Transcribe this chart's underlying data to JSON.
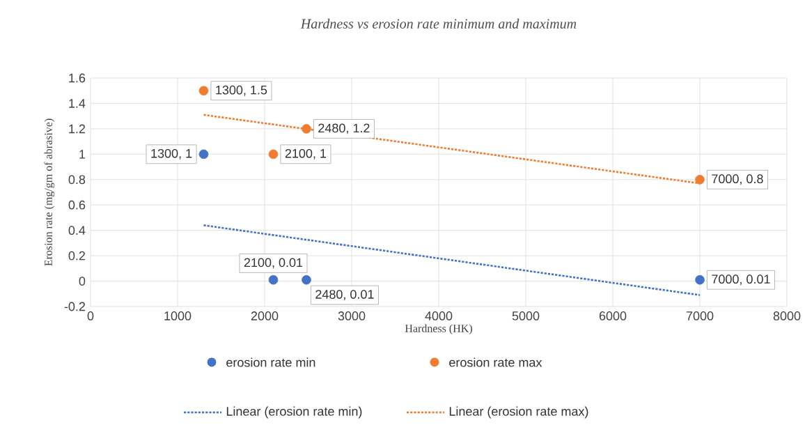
{
  "chart_data": {
    "type": "scatter",
    "title": "Hardness vs erosion rate minimum and maximum",
    "xlabel": "Hardness (HK)",
    "ylabel": "Erosion rate (mg/gm of abrasive)",
    "xlim": [
      0,
      8000
    ],
    "ylim": [
      -0.2,
      1.6
    ],
    "xticks": [
      0,
      1000,
      2000,
      3000,
      4000,
      5000,
      6000,
      7000,
      8000
    ],
    "yticks": [
      -0.2,
      0,
      0.2,
      0.4,
      0.6,
      0.8,
      1,
      1.2,
      1.4,
      1.6
    ],
    "grid": true,
    "legend": "bottom",
    "series": [
      {
        "name": "erosion rate min",
        "marker": "circle",
        "color": "#4472c4",
        "x": [
          1300,
          2100,
          2480,
          7000
        ],
        "values": [
          1,
          0.01,
          0.01,
          0.01
        ],
        "value_labels": [
          "1300, 1",
          "2100, 0.01",
          "2480, 0.01",
          "7000, 0.01"
        ]
      },
      {
        "name": "erosion rate max",
        "marker": "circle",
        "color": "#ed7d31",
        "x": [
          1300,
          2100,
          2480,
          7000
        ],
        "values": [
          1.5,
          1,
          1.2,
          0.8
        ],
        "value_labels": [
          "1300, 1.5",
          "2100, 1",
          "2480, 1.2",
          "7000, 0.8"
        ]
      },
      {
        "name": "Linear (erosion rate min)",
        "type": "line",
        "marker": "none",
        "line_style": "dotted",
        "color": "#4472c4",
        "x": [
          1300,
          7000
        ],
        "values": [
          0.44,
          -0.11
        ]
      },
      {
        "name": "Linear (erosion rate max)",
        "type": "line",
        "marker": "none",
        "line_style": "dotted",
        "color": "#ed7d31",
        "x": [
          1300,
          7000
        ],
        "values": [
          1.31,
          0.77
        ]
      }
    ]
  }
}
